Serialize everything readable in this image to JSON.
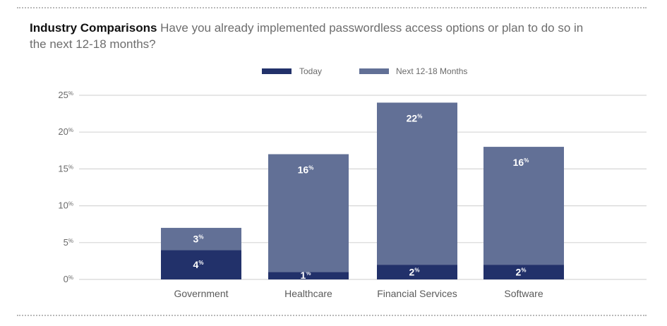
{
  "title": {
    "bold": "Industry Comparisons",
    "question": "Have you already implemented passwordless access options or plan to do so in the next 12-18 months?"
  },
  "colors": {
    "today": "#22316a",
    "next": "#627096",
    "grid": "#d6d6d6"
  },
  "chart_data": {
    "type": "bar",
    "stacked": true,
    "title": "Industry Comparisons",
    "subtitle": "Have you already implemented passwordless access options or plan to do so in the next 12-18 months?",
    "xlabel": "",
    "ylabel": "",
    "categories": [
      "Government",
      "Healthcare",
      "Financial Services",
      "Software"
    ],
    "series": [
      {
        "name": "Today",
        "values": [
          4,
          1,
          2,
          2
        ]
      },
      {
        "name": "Next 12-18 Months",
        "values": [
          3,
          16,
          22,
          16
        ]
      }
    ],
    "value_suffix": "%",
    "ylim": [
      0,
      25
    ],
    "yticks": [
      0,
      5,
      10,
      15,
      20,
      25
    ],
    "ytick_suffix": "%",
    "grid": true,
    "legend_position": "top-center"
  }
}
